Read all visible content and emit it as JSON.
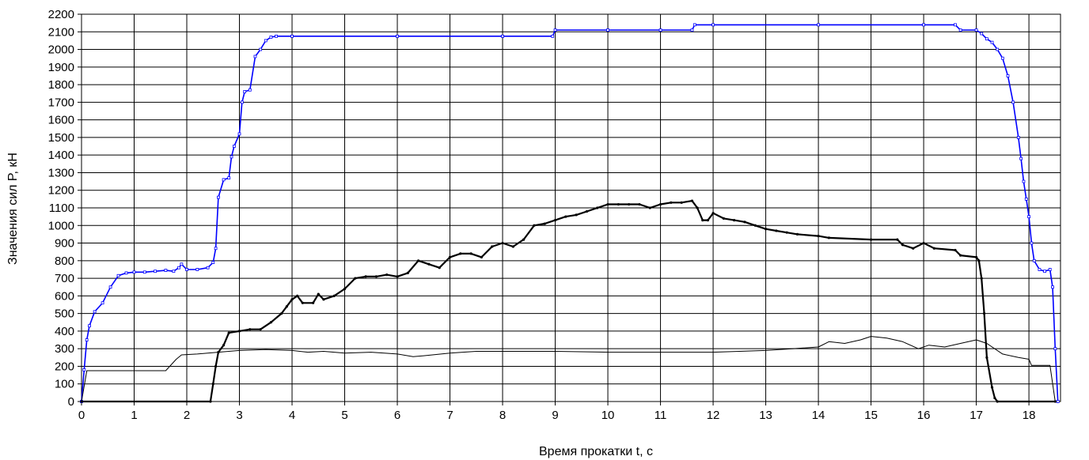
{
  "chart_data": {
    "type": "line",
    "title": "",
    "xlabel": "Время прокатки t, с",
    "ylabel": "Значения сил P, кН",
    "xlim": [
      0,
      18.6
    ],
    "ylim": [
      0,
      2200
    ],
    "xticks": [
      "0",
      "1",
      "2",
      "3",
      "4",
      "5",
      "6",
      "7",
      "8",
      "9",
      "10",
      "11",
      "12",
      "13",
      "14",
      "15",
      "16",
      "17",
      "18"
    ],
    "yticks": [
      "0",
      "100",
      "200",
      "300",
      "400",
      "500",
      "600",
      "700",
      "800",
      "900",
      "1000",
      "1100",
      "1200",
      "1300",
      "1400",
      "1500",
      "1600",
      "1700",
      "1800",
      "1900",
      "2000",
      "2100",
      "2200"
    ],
    "grid": true,
    "legend": "none",
    "series": [
      {
        "color": "#0000ff",
        "marker": "square-small",
        "x": [
          0,
          0.05,
          0.1,
          0.15,
          0.25,
          0.4,
          0.55,
          0.7,
          0.85,
          1.0,
          1.2,
          1.4,
          1.6,
          1.75,
          1.85,
          1.9,
          2.0,
          2.2,
          2.4,
          2.5,
          2.55,
          2.6,
          2.7,
          2.8,
          2.85,
          2.9,
          3.0,
          3.05,
          3.1,
          3.2,
          3.3,
          3.4,
          3.5,
          3.6,
          3.7,
          4.0,
          6.0,
          8.0,
          8.95,
          9.0,
          10.0,
          11.0,
          11.6,
          11.65,
          12.0,
          14.0,
          16.0,
          16.6,
          16.7,
          17.0,
          17.1,
          17.2,
          17.3,
          17.4,
          17.5,
          17.6,
          17.7,
          17.8,
          17.85,
          17.9,
          17.95,
          18.0,
          18.05,
          18.1,
          18.2,
          18.3,
          18.4,
          18.45,
          18.5,
          18.55
        ],
        "y": [
          0,
          180,
          350,
          430,
          510,
          560,
          650,
          715,
          730,
          735,
          735,
          740,
          745,
          740,
          760,
          780,
          750,
          750,
          760,
          790,
          870,
          1160,
          1260,
          1270,
          1390,
          1450,
          1520,
          1700,
          1760,
          1770,
          1960,
          2000,
          2050,
          2070,
          2075,
          2075,
          2075,
          2075,
          2075,
          2110,
          2110,
          2110,
          2110,
          2140,
          2140,
          2140,
          2140,
          2140,
          2110,
          2110,
          2090,
          2060,
          2040,
          2000,
          1950,
          1850,
          1700,
          1500,
          1380,
          1250,
          1150,
          1050,
          900,
          800,
          750,
          740,
          750,
          650,
          300,
          0
        ]
      },
      {
        "color": "#000000",
        "marker": "dot-small",
        "x": [
          0,
          2.45,
          2.5,
          2.55,
          2.6,
          2.7,
          2.8,
          3.0,
          3.2,
          3.4,
          3.6,
          3.8,
          3.9,
          4.0,
          4.1,
          4.2,
          4.4,
          4.5,
          4.6,
          4.8,
          5.0,
          5.2,
          5.4,
          5.6,
          5.8,
          6.0,
          6.2,
          6.4,
          6.6,
          6.8,
          7.0,
          7.2,
          7.4,
          7.6,
          7.8,
          8.0,
          8.2,
          8.4,
          8.6,
          8.8,
          9.0,
          9.2,
          9.4,
          9.6,
          9.8,
          10.0,
          10.2,
          10.4,
          10.6,
          10.8,
          11.0,
          11.2,
          11.4,
          11.6,
          11.7,
          11.8,
          11.9,
          12.0,
          12.2,
          12.4,
          12.6,
          12.8,
          13.0,
          13.2,
          13.4,
          13.6,
          14.0,
          14.2,
          15.0,
          15.5,
          15.6,
          15.8,
          16.0,
          16.2,
          16.6,
          16.7,
          17.0,
          17.05,
          17.1,
          17.15,
          17.2,
          17.3,
          17.35,
          17.4,
          18.5
        ],
        "y": [
          0,
          0,
          100,
          200,
          280,
          320,
          390,
          400,
          410,
          410,
          450,
          500,
          540,
          580,
          600,
          560,
          560,
          610,
          580,
          600,
          640,
          700,
          710,
          710,
          720,
          710,
          730,
          800,
          780,
          760,
          820,
          840,
          840,
          820,
          880,
          900,
          880,
          920,
          1000,
          1010,
          1030,
          1050,
          1060,
          1080,
          1100,
          1120,
          1120,
          1120,
          1120,
          1100,
          1120,
          1130,
          1130,
          1140,
          1100,
          1030,
          1030,
          1070,
          1040,
          1030,
          1020,
          1000,
          980,
          970,
          960,
          950,
          940,
          930,
          920,
          920,
          890,
          870,
          900,
          870,
          860,
          830,
          820,
          800,
          700,
          500,
          250,
          80,
          20,
          0,
          0
        ]
      },
      {
        "color": "#000000",
        "marker": "none",
        "x": [
          0,
          0.1,
          1.6,
          1.8,
          1.9,
          2.2,
          2.6,
          3.0,
          3.5,
          4.0,
          4.3,
          4.6,
          5.0,
          5.5,
          6.0,
          6.3,
          6.5,
          7.0,
          7.5,
          8.0,
          9.0,
          10.0,
          11.0,
          12.0,
          12.5,
          13.0,
          13.5,
          14.0,
          14.2,
          14.5,
          14.8,
          15.0,
          15.3,
          15.6,
          15.9,
          16.1,
          16.4,
          16.7,
          17.0,
          17.2,
          17.5,
          17.8,
          18.0,
          18.05,
          18.4,
          18.5
        ],
        "y": [
          0,
          175,
          175,
          240,
          265,
          270,
          280,
          290,
          295,
          290,
          280,
          285,
          275,
          280,
          270,
          255,
          260,
          275,
          285,
          285,
          285,
          280,
          280,
          280,
          285,
          290,
          300,
          310,
          340,
          330,
          350,
          370,
          360,
          340,
          300,
          320,
          310,
          330,
          350,
          330,
          270,
          250,
          240,
          205,
          205,
          0
        ]
      }
    ]
  }
}
